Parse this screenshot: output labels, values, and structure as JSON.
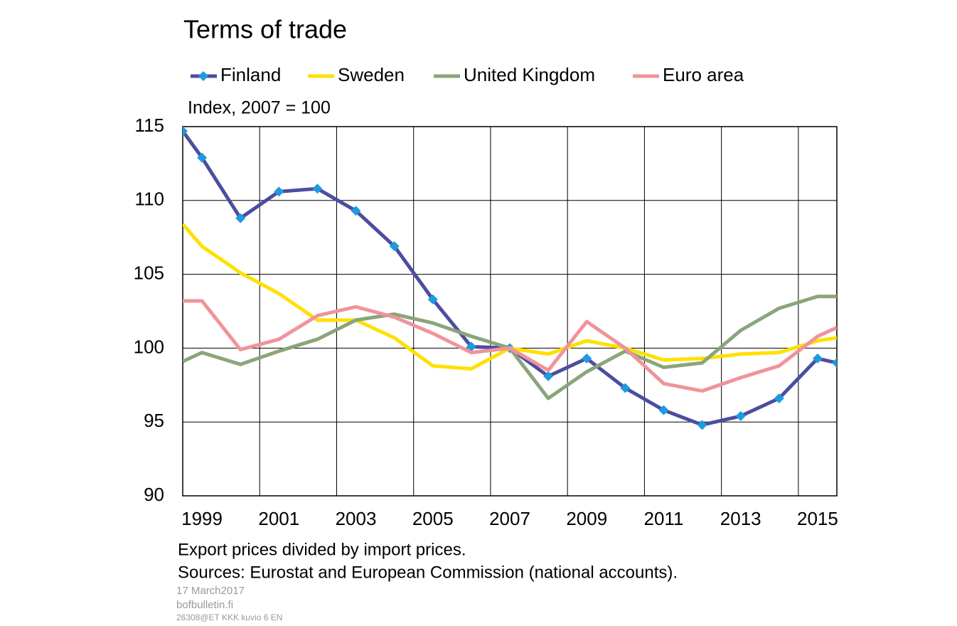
{
  "chart_data": {
    "type": "line",
    "title": "Terms of trade",
    "subtitle": "Index, 2007 = 100",
    "notes": [
      "Export prices divided by import prices.",
      "Sources: Eurostat and European Commission (national accounts)."
    ],
    "footer": [
      "17 March2017",
      "bofbulletin.fi",
      "26308@ET KKK kuvio 6 EN"
    ],
    "x": [
      1998.5,
      1999,
      2000,
      2001,
      2002,
      2003,
      2004,
      2005,
      2006,
      2007,
      2008,
      2009,
      2010,
      2011,
      2012,
      2013,
      2014,
      2015,
      2015.5
    ],
    "series": [
      {
        "name": "Finland",
        "color": "#4b4e9e",
        "marker_color": "#1f9ae0",
        "values": [
          114.7,
          112.9,
          108.8,
          110.6,
          110.8,
          109.3,
          106.9,
          103.3,
          100.1,
          100,
          98.1,
          99.3,
          97.3,
          95.8,
          94.8,
          95.4,
          96.6,
          99.3,
          99.0
        ]
      },
      {
        "name": "Sweden",
        "color": "#ffe000",
        "values": [
          108.4,
          106.9,
          105.1,
          103.7,
          101.9,
          101.9,
          100.7,
          98.8,
          98.6,
          100,
          99.6,
          100.5,
          100.0,
          99.2,
          99.3,
          99.6,
          99.7,
          100.5,
          100.7
        ]
      },
      {
        "name": "United Kingdom",
        "color": "#8aa57a",
        "values": [
          99.1,
          99.7,
          98.9,
          99.8,
          100.6,
          101.9,
          102.3,
          101.7,
          100.8,
          100,
          96.6,
          98.4,
          99.8,
          98.7,
          99.0,
          101.2,
          102.7,
          103.5,
          103.5
        ]
      },
      {
        "name": "Euro area",
        "color": "#f0939a",
        "values": [
          103.2,
          103.2,
          99.9,
          100.6,
          102.2,
          102.8,
          102.1,
          101.0,
          99.7,
          100,
          98.5,
          101.8,
          100.0,
          97.6,
          97.1,
          98.0,
          98.8,
          100.8,
          101.4
        ]
      }
    ],
    "xlim": [
      1998.5,
      2015.5
    ],
    "xticks": [
      1999,
      2001,
      2003,
      2005,
      2007,
      2009,
      2011,
      2013,
      2015
    ],
    "xgrid": [
      2000.5,
      2002.5,
      2004.5,
      2006.5,
      2008.5,
      2010.5,
      2012.5,
      2014.5
    ],
    "ylim": [
      90,
      115
    ],
    "yticks": [
      90,
      95,
      100,
      105,
      110,
      115
    ],
    "grid": true,
    "legend": "top"
  }
}
